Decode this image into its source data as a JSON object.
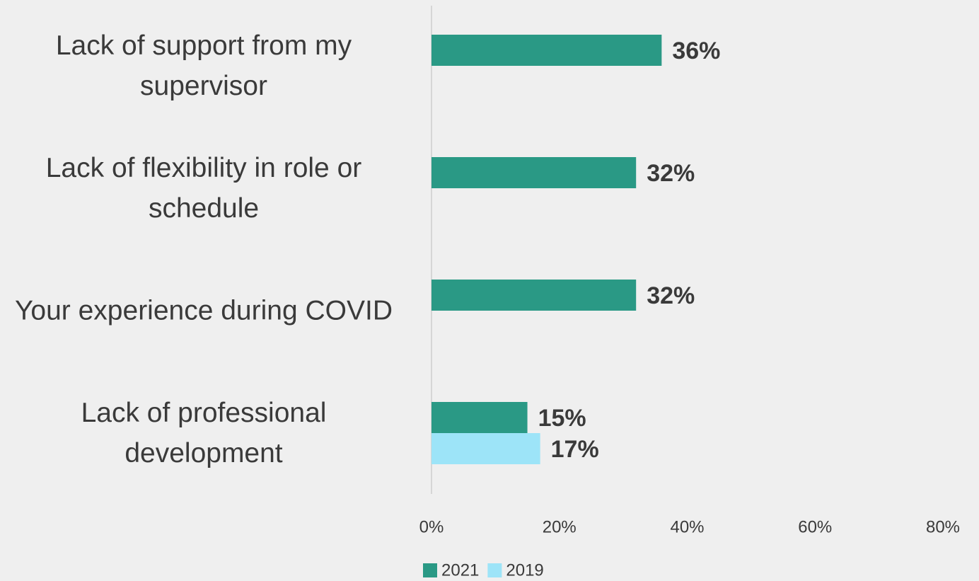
{
  "chart_data": {
    "type": "bar",
    "orientation": "horizontal",
    "categories": [
      "Lack of support from my supervisor",
      "Lack of flexibility in role or schedule",
      "Your experience during COVID",
      "Lack of professional development"
    ],
    "series": [
      {
        "name": "2021",
        "color": "#2a9985",
        "values": [
          36,
          32,
          32,
          15
        ],
        "value_labels": [
          "36%",
          "32%",
          "32%",
          "15%"
        ]
      },
      {
        "name": "2019",
        "color": "#9de4f8",
        "values": [
          null,
          null,
          null,
          17
        ],
        "value_labels": [
          null,
          null,
          null,
          "17%"
        ]
      }
    ],
    "xlim": [
      0,
      80
    ],
    "xticks": [
      {
        "value": 0,
        "label": "0%"
      },
      {
        "value": 20,
        "label": "20%"
      },
      {
        "value": 40,
        "label": "40%"
      },
      {
        "value": 60,
        "label": "60%"
      },
      {
        "value": 80,
        "label": "80%"
      }
    ],
    "grid": false,
    "legend": "bottom"
  }
}
